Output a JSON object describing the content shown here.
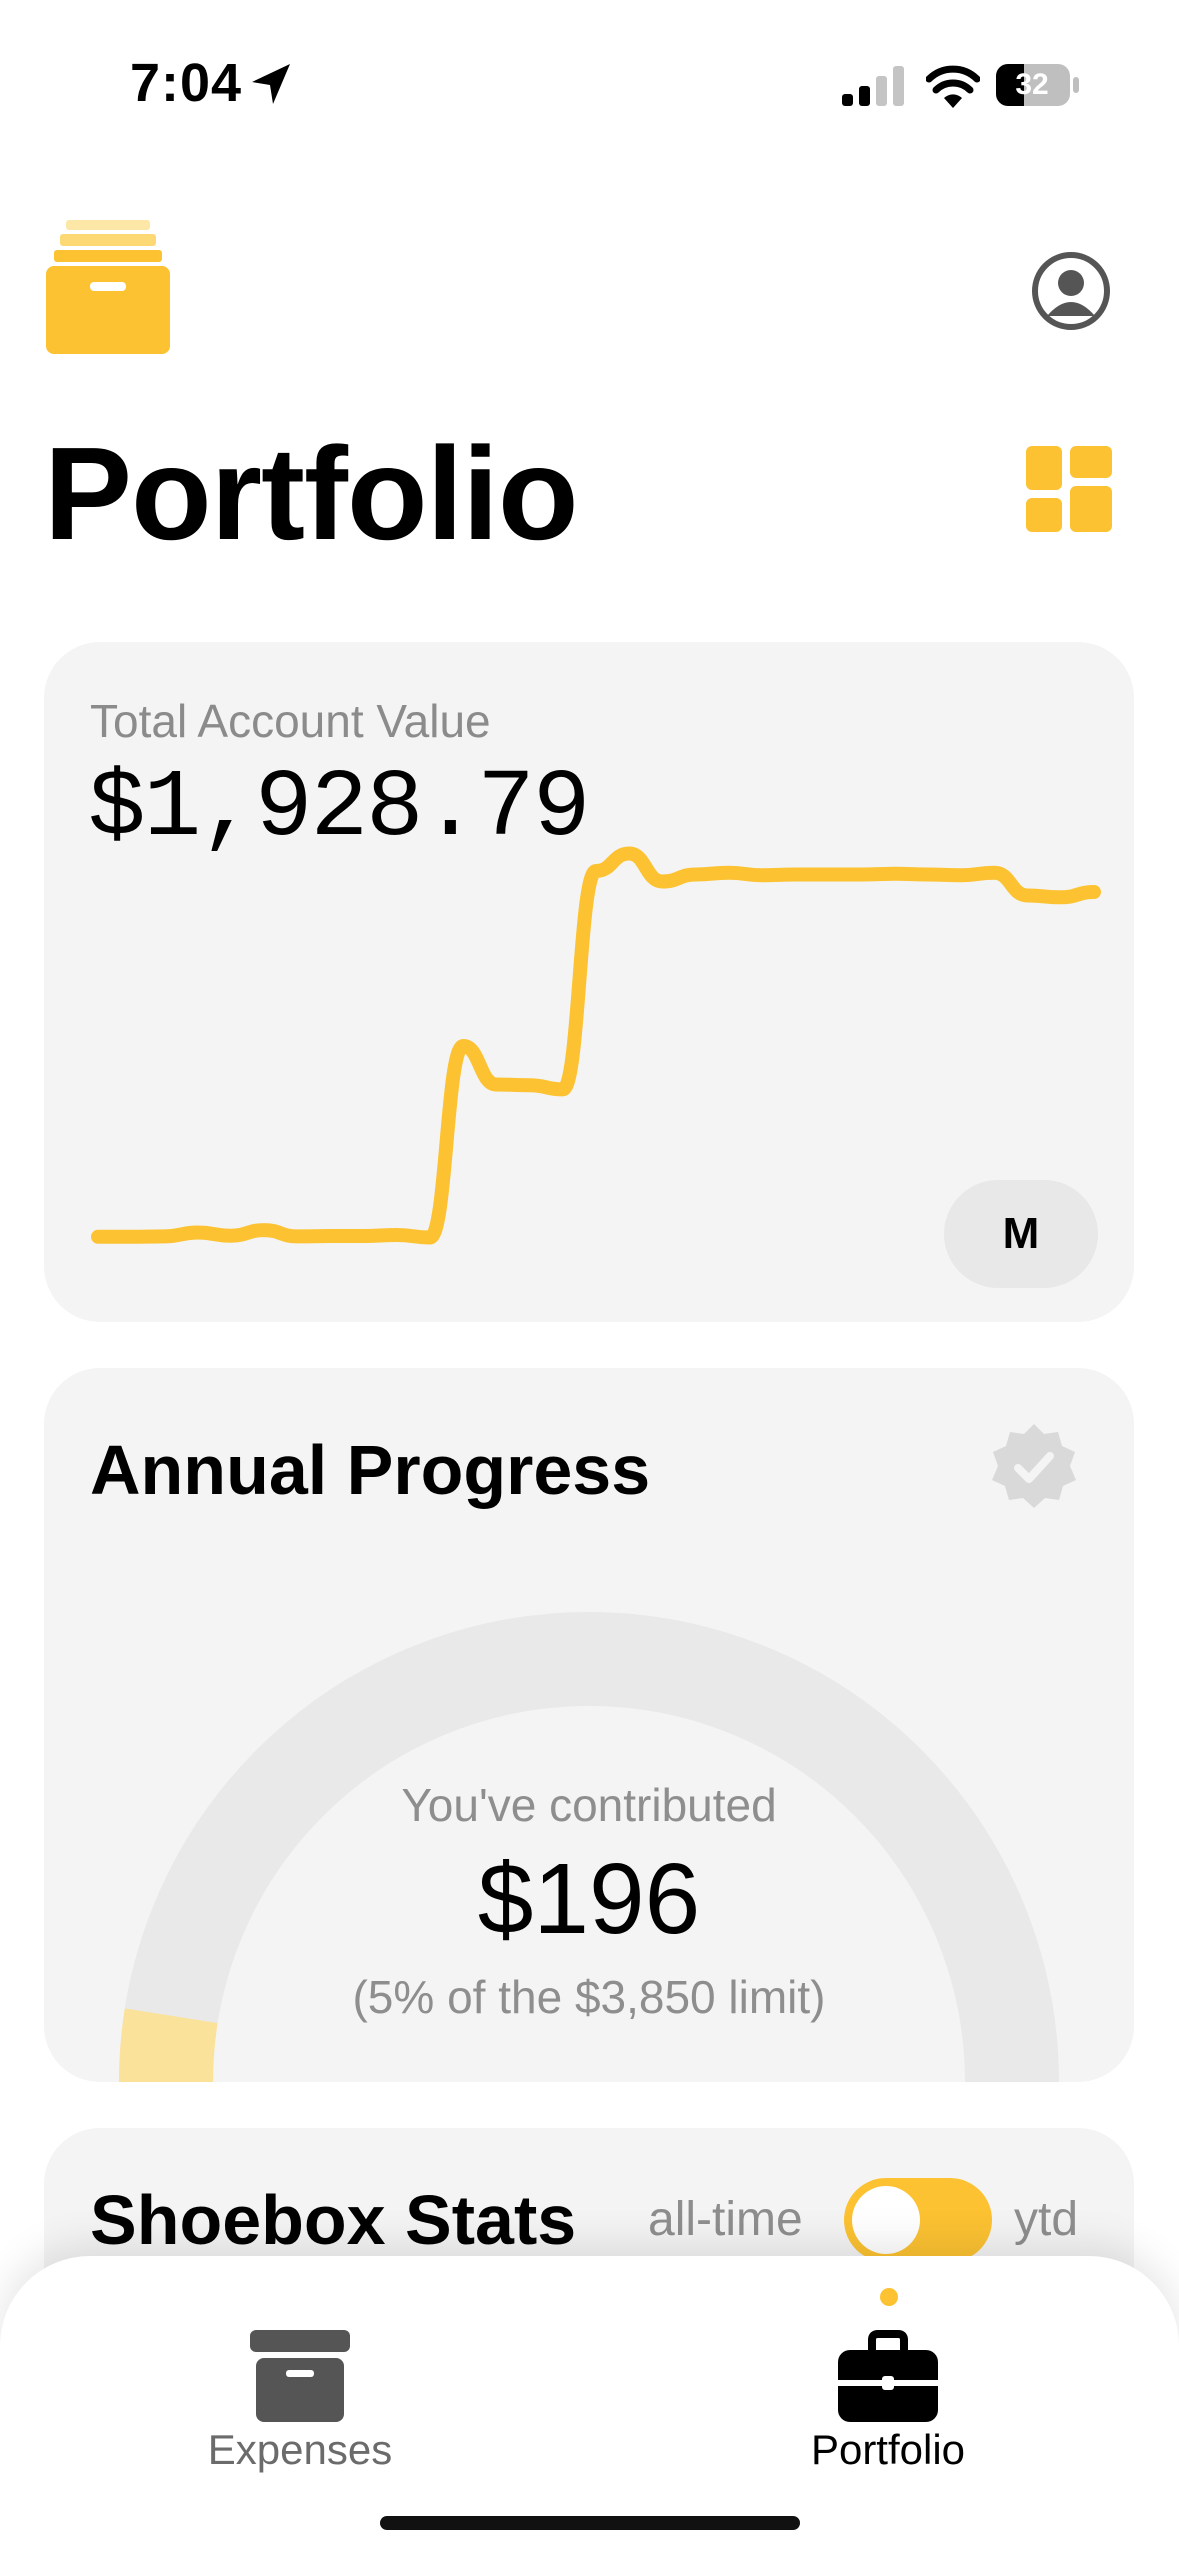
{
  "status_bar": {
    "time": "7:04",
    "battery": "32",
    "icons": [
      "location-arrow-icon",
      "cellular-signal-icon",
      "wifi-icon",
      "battery-icon"
    ]
  },
  "header": {
    "logo_icon": "shoebox-logo-icon",
    "profile_icon": "profile-icon",
    "title": "Portfolio",
    "grid_icon": "grid-view-icon"
  },
  "account_card": {
    "label": "Total Account Value",
    "value": "$1,928.79",
    "range_button": "M",
    "accent_color": "#fcc232"
  },
  "chart_data": {
    "type": "line",
    "title": "",
    "xlabel": "",
    "ylabel": "",
    "x": [
      0,
      1,
      2,
      3,
      4,
      5,
      6,
      7,
      8,
      9,
      10,
      11,
      12,
      13,
      14,
      15,
      16,
      17,
      18,
      19,
      20,
      21,
      22,
      23,
      24,
      25,
      26,
      27,
      28,
      29,
      30
    ],
    "series": [
      {
        "values": [
          15,
          15,
          16,
          27,
          18,
          34,
          16,
          17,
          17,
          20,
          13,
          560,
          450,
          448,
          436,
          1060,
          1110,
          1030,
          1050,
          1055,
          1048,
          1050,
          1050,
          1050,
          1052,
          1050,
          1048,
          1055,
          990,
          985,
          1000
        ]
      }
    ],
    "ylim": [
      0,
      1200
    ],
    "grid": false,
    "legend": "none",
    "axes_visible": false,
    "color": "#fcc232"
  },
  "progress_card": {
    "title": "Annual Progress",
    "verified_icon": "verified-badge-icon",
    "caption": "You've contributed",
    "amount": "$196",
    "limit_text": "(5% of the $3,850 limit)",
    "progress_fraction": 0.05,
    "track_color": "#e9e9e9",
    "fill_color": "#fbe29a"
  },
  "stats_card": {
    "title": "Shoebox Stats",
    "toggle_left": "all-time",
    "toggle_right": "ytd",
    "toggle_state": "all-time"
  },
  "tabbar": {
    "tabs": [
      {
        "label": "Expenses",
        "icon": "archive-box-icon",
        "active": false
      },
      {
        "label": "Portfolio",
        "icon": "briefcase-icon",
        "active": true
      }
    ]
  }
}
